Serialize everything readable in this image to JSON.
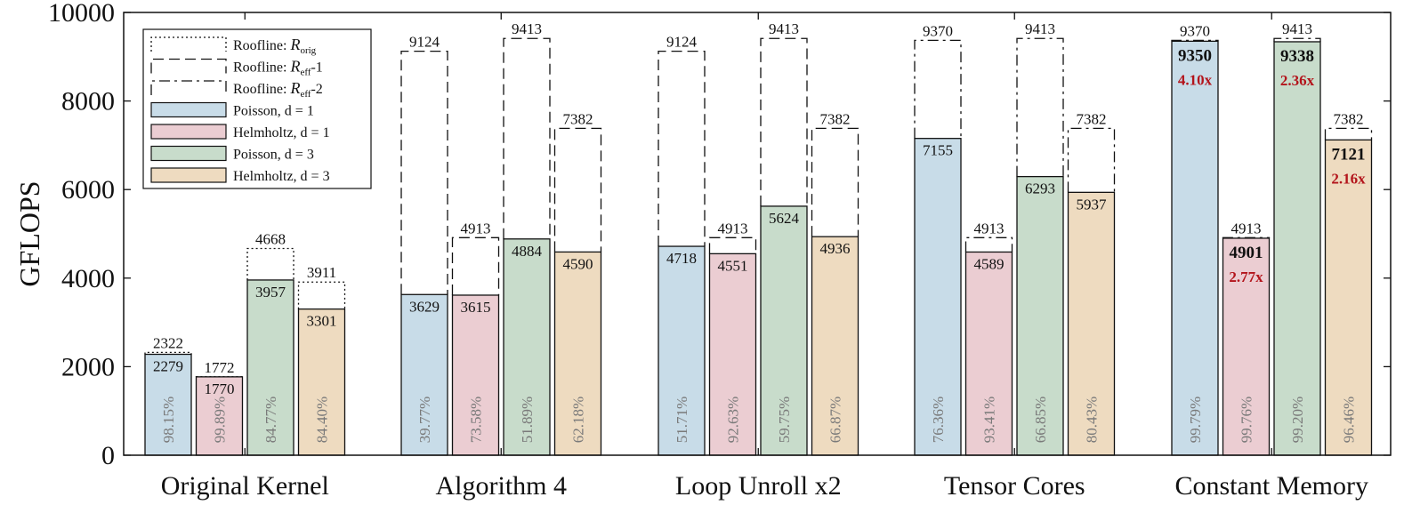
{
  "chart_data": {
    "type": "bar",
    "title": "",
    "xlabel": "",
    "ylabel": "GFLOPS",
    "ylim": [
      0,
      10000
    ],
    "yticks": [
      0,
      2000,
      4000,
      6000,
      8000,
      10000
    ],
    "categories": [
      "Original Kernel",
      "Algorithm 4",
      "Loop Unroll x2",
      "Tensor Cores",
      "Constant Memory"
    ],
    "series": [
      {
        "name": "Poisson, d = 1",
        "color": "#c8dce8",
        "values": [
          2279,
          3629,
          4718,
          7155,
          9350
        ],
        "roofline": [
          2322,
          9124,
          9124,
          9370,
          9370
        ],
        "roofline_style": [
          "orig",
          "eff1",
          "eff1",
          "eff2",
          "eff2"
        ],
        "percent": [
          "98.15%",
          "39.77%",
          "51.71%",
          "76.36%",
          "99.79%"
        ],
        "speedup": [
          "",
          "",
          "",
          "",
          "4.10x"
        ]
      },
      {
        "name": "Helmholtz, d = 1",
        "color": "#ebcdd2",
        "values": [
          1770,
          3615,
          4551,
          4589,
          4901
        ],
        "roofline": [
          1772,
          4913,
          4913,
          4913,
          4913
        ],
        "roofline_style": [
          "orig",
          "eff1",
          "eff1",
          "eff2",
          "eff2"
        ],
        "percent": [
          "99.89%",
          "73.58%",
          "92.63%",
          "93.41%",
          "99.76%"
        ],
        "speedup": [
          "",
          "",
          "",
          "",
          "2.77x"
        ]
      },
      {
        "name": "Poisson, d = 3",
        "color": "#c8dccb",
        "values": [
          3957,
          4884,
          5624,
          6293,
          9338
        ],
        "roofline": [
          4668,
          9413,
          9413,
          9413,
          9413
        ],
        "roofline_style": [
          "orig",
          "eff1",
          "eff1",
          "eff2",
          "eff2"
        ],
        "percent": [
          "84.77%",
          "51.89%",
          "59.75%",
          "66.85%",
          "99.20%"
        ],
        "speedup": [
          "",
          "",
          "",
          "",
          "2.36x"
        ]
      },
      {
        "name": "Helmholtz, d = 3",
        "color": "#eedbc0",
        "values": [
          3301,
          4590,
          4936,
          5937,
          7121
        ],
        "roofline": [
          3911,
          7382,
          7382,
          7382,
          7382
        ],
        "roofline_style": [
          "orig",
          "eff1",
          "eff1",
          "eff2",
          "eff2"
        ],
        "percent": [
          "84.40%",
          "62.18%",
          "66.87%",
          "80.43%",
          "96.46%"
        ],
        "speedup": [
          "",
          "",
          "",
          "",
          "2.16x"
        ]
      }
    ],
    "legend": {
      "placement": "top-left",
      "roofline_entries": [
        {
          "style": "orig",
          "prefix": "Roofline: ",
          "symbol": "R",
          "sub": "orig",
          "suffix": ""
        },
        {
          "style": "eff1",
          "prefix": "Roofline: ",
          "symbol": "R",
          "sub": "eff",
          "suffix": "-1"
        },
        {
          "style": "eff2",
          "prefix": "Roofline: ",
          "symbol": "R",
          "sub": "eff",
          "suffix": "-2"
        }
      ]
    },
    "grid": false
  }
}
